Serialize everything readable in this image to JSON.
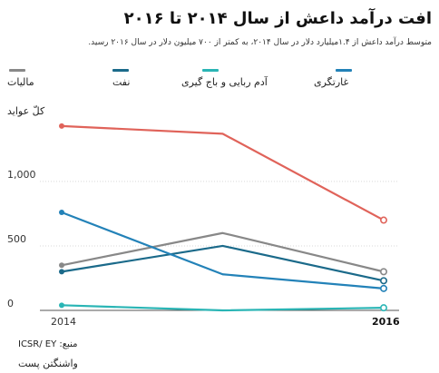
{
  "title": "افت درآمد داعش از سال ۲۰۱۴ تا ۲۰۱۶",
  "subtitle": "متوسط درآمد داعش از ۱.۴میلیارد دلار در سال ۲۰۱۴، به کمتر از ۷۰۰ میلیون دلار در سال ۲۰۱۶ رسید.",
  "ylabel": "کلّ عواید",
  "source": "منبع: ICSR/ EY",
  "publisher": "واشنگتن پست",
  "chart_data": {
    "type": "line",
    "x": [
      "2014",
      "2015",
      "2016"
    ],
    "x_tick_labels": [
      "2014",
      "2016"
    ],
    "y_ticks": [
      "0",
      "500",
      "1,000"
    ],
    "ylim": [
      0,
      1450
    ],
    "grid": true,
    "legend_position": "top",
    "series": [
      {
        "name": "مالیات",
        "color": "#888888",
        "values": [
          350,
          600,
          300
        ]
      },
      {
        "name": "نفت",
        "color": "#1b6a8a",
        "values": [
          300,
          500,
          230
        ]
      },
      {
        "name": "آدم ربایی و باج گیری",
        "color": "#2ab5b5",
        "values": [
          40,
          0,
          20
        ]
      },
      {
        "name": "غارتگری",
        "color": "#2382b8",
        "values": [
          760,
          280,
          170
        ]
      },
      {
        "name": "",
        "color": "#e0635a",
        "values": [
          1430,
          1370,
          700
        ]
      }
    ]
  }
}
